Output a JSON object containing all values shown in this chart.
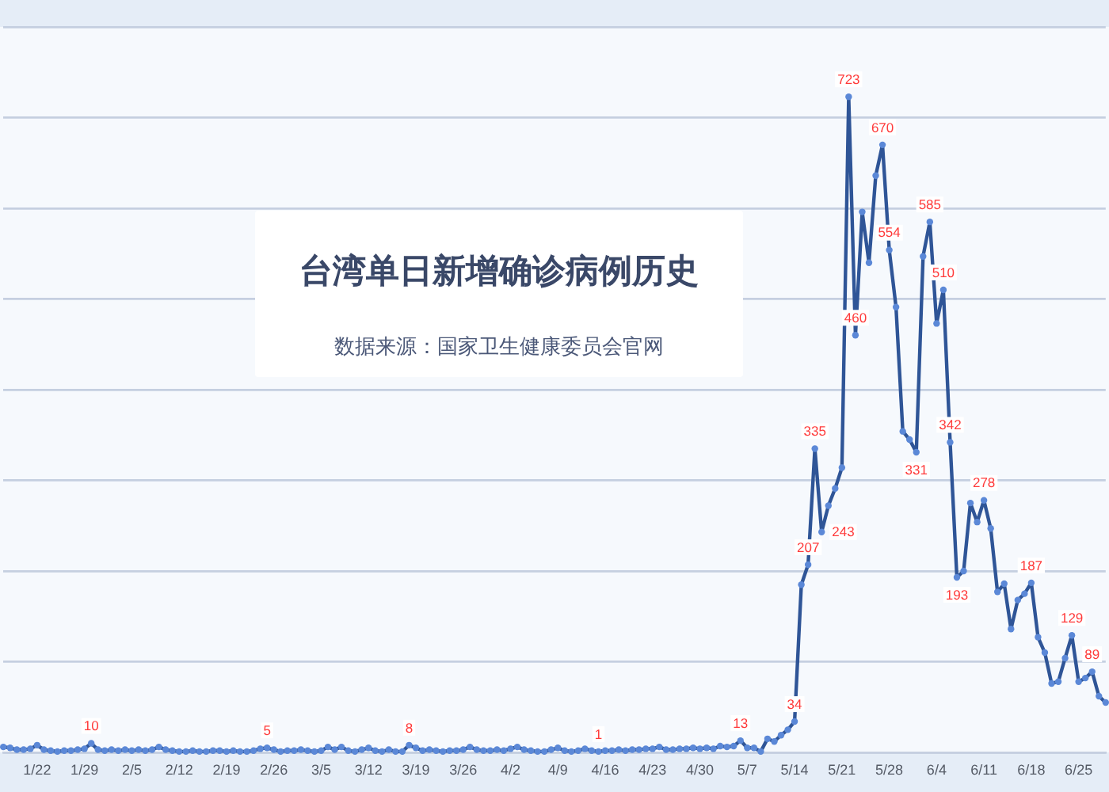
{
  "chart_data": {
    "type": "line",
    "title": "台湾单日新增确诊病例历史",
    "subtitle": "数据来源：国家卫生健康委员会官网",
    "x": [
      "--01-17",
      "--01-18",
      "--01-19",
      "--01-20",
      "--01-21",
      "--01-22",
      "--01-23",
      "--01-24",
      "--01-25",
      "--01-26",
      "--01-27",
      "--01-28",
      "--01-29",
      "--01-30",
      "--01-31",
      "--02-01",
      "--02-02",
      "--02-03",
      "--02-04",
      "--02-05",
      "--02-06",
      "--02-07",
      "--02-08",
      "--02-09",
      "--02-10",
      "--02-11",
      "--02-12",
      "--02-13",
      "--02-14",
      "--02-15",
      "--02-16",
      "--02-17",
      "--02-18",
      "--02-19",
      "--02-20",
      "--02-21",
      "--02-22",
      "--02-23",
      "--02-24",
      "--02-25",
      "--02-26",
      "--02-27",
      "--02-28",
      "--03-01",
      "--03-02",
      "--03-03",
      "--03-04",
      "--03-05",
      "--03-06",
      "--03-07",
      "--03-08",
      "--03-09",
      "--03-10",
      "--03-11",
      "--03-12",
      "--03-13",
      "--03-14",
      "--03-15",
      "--03-16",
      "--03-17",
      "--03-18",
      "--03-19",
      "--03-20",
      "--03-21",
      "--03-22",
      "--03-23",
      "--03-24",
      "--03-25",
      "--03-26",
      "--03-27",
      "--03-28",
      "--03-29",
      "--03-30",
      "--03-31",
      "--04-01",
      "--04-02",
      "--04-03",
      "--04-04",
      "--04-05",
      "--04-06",
      "--04-07",
      "--04-08",
      "--04-09",
      "--04-10",
      "--04-11",
      "--04-12",
      "--04-13",
      "--04-14",
      "--04-15",
      "--04-16",
      "--04-17",
      "--04-18",
      "--04-19",
      "--04-20",
      "--04-21",
      "--04-22",
      "--04-23",
      "--04-24",
      "--04-25",
      "--04-26",
      "--04-27",
      "--04-28",
      "--04-29",
      "--04-30",
      "--05-01",
      "--05-02",
      "--05-03",
      "--05-04",
      "--05-05",
      "--05-06",
      "--05-07",
      "--05-08",
      "--05-09",
      "--05-10",
      "--05-11",
      "--05-12",
      "--05-13",
      "--05-14",
      "--05-15",
      "--05-16",
      "--05-17",
      "--05-18",
      "--05-19",
      "--05-20",
      "--05-21",
      "--05-22",
      "--05-23",
      "--05-24",
      "--05-25",
      "--05-26",
      "--05-27",
      "--05-28",
      "--05-29",
      "--05-30",
      "--05-31",
      "--06-01",
      "--06-02",
      "--06-03",
      "--06-04",
      "--06-05",
      "--06-06",
      "--06-07",
      "--06-08",
      "--06-09",
      "--06-10",
      "--06-11",
      "--06-12",
      "--06-13",
      "--06-14",
      "--06-15",
      "--06-16",
      "--06-17",
      "--06-18",
      "--06-19",
      "--06-20",
      "--06-21",
      "--06-22",
      "--06-23",
      "--06-24",
      "--06-25",
      "--06-26",
      "--06-27",
      "--06-28",
      "--06-29"
    ],
    "values": [
      6,
      5,
      3,
      3,
      4,
      8,
      3,
      2,
      1,
      2,
      2,
      3,
      4,
      10,
      3,
      2,
      3,
      2,
      3,
      2,
      3,
      2,
      3,
      6,
      3,
      2,
      1,
      1,
      2,
      1,
      1,
      2,
      2,
      1,
      2,
      1,
      1,
      2,
      4,
      5,
      3,
      1,
      2,
      2,
      3,
      2,
      1,
      2,
      6,
      3,
      6,
      2,
      1,
      3,
      5,
      2,
      1,
      3,
      1,
      1,
      8,
      5,
      2,
      3,
      2,
      1,
      2,
      2,
      3,
      6,
      3,
      2,
      2,
      3,
      2,
      4,
      6,
      3,
      2,
      1,
      1,
      3,
      5,
      2,
      1,
      2,
      4,
      2,
      1,
      2,
      2,
      3,
      2,
      3,
      3,
      4,
      4,
      6,
      3,
      3,
      4,
      4,
      5,
      4,
      5,
      4,
      7,
      6,
      7,
      13,
      5,
      5,
      1,
      15,
      12,
      19,
      25,
      34,
      185,
      207,
      335,
      243,
      272,
      291,
      314,
      723,
      460,
      596,
      540,
      636,
      670,
      554,
      491,
      354,
      345,
      331,
      547,
      585,
      473,
      510,
      342,
      193,
      200,
      275,
      254,
      278,
      247,
      177,
      186,
      136,
      168,
      175,
      187,
      127,
      110,
      76,
      78,
      104,
      129,
      78,
      82,
      89,
      62,
      55
    ],
    "value_labels": [
      null,
      null,
      null,
      null,
      null,
      null,
      null,
      null,
      null,
      null,
      null,
      null,
      null,
      "10",
      null,
      null,
      null,
      null,
      null,
      null,
      null,
      null,
      null,
      null,
      null,
      null,
      null,
      null,
      null,
      null,
      null,
      null,
      null,
      null,
      null,
      null,
      null,
      null,
      null,
      "5",
      null,
      null,
      null,
      null,
      null,
      null,
      null,
      null,
      null,
      null,
      null,
      null,
      null,
      null,
      null,
      null,
      null,
      null,
      null,
      null,
      "8",
      null,
      null,
      null,
      null,
      null,
      null,
      null,
      null,
      null,
      null,
      null,
      null,
      null,
      null,
      null,
      null,
      null,
      null,
      null,
      null,
      null,
      null,
      null,
      null,
      null,
      null,
      null,
      "1",
      null,
      null,
      null,
      null,
      null,
      null,
      null,
      null,
      null,
      null,
      null,
      null,
      null,
      null,
      null,
      null,
      null,
      null,
      null,
      null,
      "13",
      null,
      null,
      null,
      null,
      null,
      null,
      null,
      "34",
      null,
      "207",
      "335",
      "243",
      null,
      null,
      null,
      "723",
      "460",
      null,
      null,
      null,
      "670",
      "554",
      null,
      null,
      null,
      "331",
      null,
      "585",
      null,
      "510",
      "342",
      "193",
      null,
      null,
      null,
      "278",
      null,
      null,
      null,
      null,
      null,
      null,
      "187",
      null,
      null,
      null,
      null,
      null,
      "129",
      null,
      null,
      "89",
      null,
      null
    ],
    "color": "#2f5597",
    "marker": "circle",
    "xlim": [
      "--01-17",
      "--06-29"
    ],
    "xticks": [
      {
        "value": "--01-22",
        "label": "1/22"
      },
      {
        "value": "--01-29",
        "label": "1/29"
      },
      {
        "value": "--02-05",
        "label": "2/5"
      },
      {
        "value": "--02-12",
        "label": "2/12"
      },
      {
        "value": "--02-19",
        "label": "2/19"
      },
      {
        "value": "--02-26",
        "label": "2/26"
      },
      {
        "value": "--03-05",
        "label": "3/5"
      },
      {
        "value": "--03-12",
        "label": "3/12"
      },
      {
        "value": "--03-19",
        "label": "3/19"
      },
      {
        "value": "--03-26",
        "label": "3/26"
      },
      {
        "value": "--04-02",
        "label": "4/2"
      },
      {
        "value": "--04-09",
        "label": "4/9"
      },
      {
        "value": "--04-16",
        "label": "4/16"
      },
      {
        "value": "--04-23",
        "label": "4/23"
      },
      {
        "value": "--04-30",
        "label": "4/30"
      },
      {
        "value": "--05-07",
        "label": "5/7"
      },
      {
        "value": "--05-14",
        "label": "5/14"
      },
      {
        "value": "--05-21",
        "label": "5/21"
      },
      {
        "value": "--05-28",
        "label": "5/28"
      },
      {
        "value": "--06-04",
        "label": "6/4"
      },
      {
        "value": "--06-11",
        "label": "6/11"
      },
      {
        "value": "--06-18",
        "label": "6/18"
      },
      {
        "value": "--06-25",
        "label": "6/25"
      }
    ],
    "ylim": [
      0,
      800
    ],
    "yticks": [
      {
        "value": 0,
        "label": null
      },
      {
        "value": 100,
        "label": null
      },
      {
        "value": 200,
        "label": null
      },
      {
        "value": 300,
        "label": null
      },
      {
        "value": 400,
        "label": null
      },
      {
        "value": 500,
        "label": null
      },
      {
        "value": 600,
        "label": null
      },
      {
        "value": 700,
        "label": null
      },
      {
        "value": 800,
        "label": null
      }
    ],
    "tick_labels": "x",
    "grid": "y"
  }
}
